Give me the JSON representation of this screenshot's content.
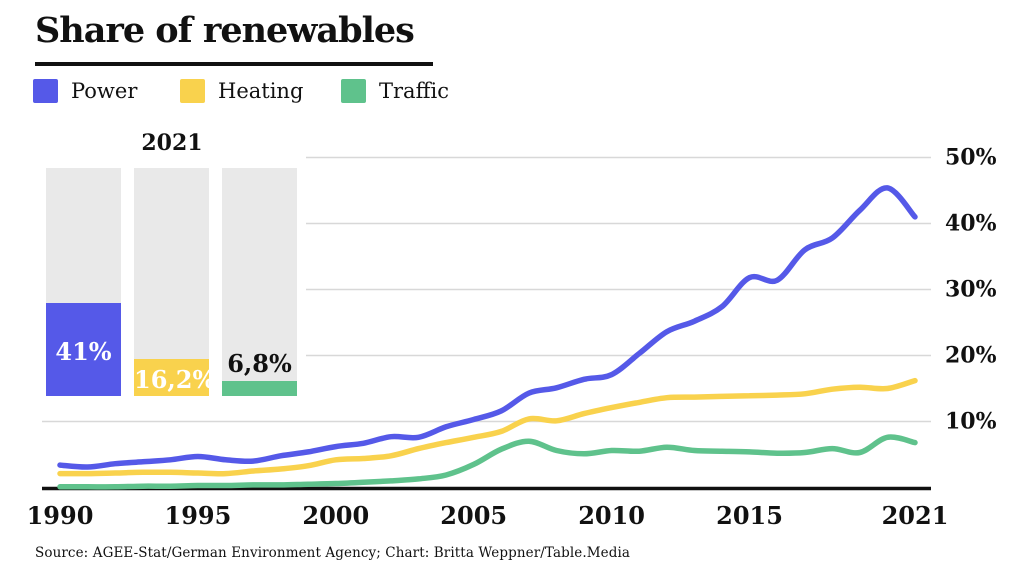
{
  "page": {
    "title": "Share of renewables",
    "source": "Source: AGEE-Stat/German Environment Agency; Chart: Britta Weppner/Table.Media"
  },
  "colors": {
    "power": "#5559e8",
    "heating": "#f9d24d",
    "traffic": "#5fc28c",
    "bar_track": "#e9e9e9",
    "gridline": "#d8d8d8",
    "axis_line": "#111111",
    "text": "#111111"
  },
  "legend": [
    {
      "label": "Power",
      "color": "#5559e8"
    },
    {
      "label": "Heating",
      "color": "#f9d24d"
    },
    {
      "label": "Traffic",
      "color": "#5fc28c"
    }
  ],
  "inset": {
    "title": "2021",
    "scale_max": 100,
    "bars": [
      {
        "series": "Power",
        "value": 41.0,
        "label": "41%",
        "label_color": "#ffffff",
        "label_position": "inside",
        "color": "#5559e8"
      },
      {
        "series": "Heating",
        "value": 16.2,
        "label": "16,2%",
        "label_color": "#ffffff",
        "label_position": "inside",
        "color": "#f9d24d"
      },
      {
        "series": "Traffic",
        "value": 6.8,
        "label": "6,8%",
        "label_color": "#111111",
        "label_position": "above",
        "color": "#5fc28c"
      }
    ]
  },
  "chart_data": {
    "type": "line",
    "title": "Share of renewables",
    "x": [
      1990,
      1991,
      1992,
      1993,
      1994,
      1995,
      1996,
      1997,
      1998,
      1999,
      2000,
      2001,
      2002,
      2003,
      2004,
      2005,
      2006,
      2007,
      2008,
      2009,
      2010,
      2011,
      2012,
      2013,
      2014,
      2015,
      2016,
      2017,
      2018,
      2019,
      2020,
      2021
    ],
    "series": [
      {
        "name": "Power",
        "color": "#5559e8",
        "values": [
          3.4,
          3.1,
          3.6,
          3.9,
          4.2,
          4.7,
          4.2,
          4.0,
          4.8,
          5.4,
          6.2,
          6.7,
          7.7,
          7.6,
          9.2,
          10.3,
          11.6,
          14.3,
          15.1,
          16.4,
          17.1,
          20.3,
          23.6,
          25.2,
          27.4,
          31.8,
          31.4,
          36.0,
          37.8,
          42.0,
          45.4,
          41.0
        ]
      },
      {
        "name": "Heating",
        "color": "#f9d24d",
        "values": [
          2.1,
          2.1,
          2.2,
          2.3,
          2.3,
          2.2,
          2.1,
          2.5,
          2.8,
          3.3,
          4.2,
          4.4,
          4.8,
          5.9,
          6.8,
          7.6,
          8.5,
          10.4,
          10.1,
          11.2,
          12.1,
          12.9,
          13.6,
          13.7,
          13.8,
          13.9,
          14.0,
          14.2,
          14.9,
          15.2,
          15.0,
          16.2
        ]
      },
      {
        "name": "Traffic",
        "color": "#5fc28c",
        "values": [
          0.1,
          0.1,
          0.1,
          0.2,
          0.2,
          0.3,
          0.3,
          0.4,
          0.4,
          0.5,
          0.6,
          0.8,
          1.0,
          1.3,
          1.9,
          3.5,
          5.8,
          7.0,
          5.6,
          5.1,
          5.6,
          5.5,
          6.1,
          5.6,
          5.5,
          5.4,
          5.2,
          5.3,
          5.9,
          5.3,
          7.6,
          6.8
        ]
      }
    ],
    "x_ticks": [
      {
        "value": 1990,
        "label": "1990"
      },
      {
        "value": 1995,
        "label": "1995"
      },
      {
        "value": 2000,
        "label": "2000"
      },
      {
        "value": 2005,
        "label": "2005"
      },
      {
        "value": 2010,
        "label": "2010"
      },
      {
        "value": 2015,
        "label": "2015"
      },
      {
        "value": 2021,
        "label": "2021"
      }
    ],
    "y_ticks": [
      {
        "value": 50,
        "label": "50%"
      },
      {
        "value": 40,
        "label": "40%"
      },
      {
        "value": 30,
        "label": "30%"
      },
      {
        "value": 20,
        "label": "20%"
      },
      {
        "value": 10,
        "label": "10%"
      }
    ],
    "ylim": [
      0,
      52
    ],
    "grid": true,
    "legend_position": "top-left",
    "y_axis_side": "right"
  }
}
